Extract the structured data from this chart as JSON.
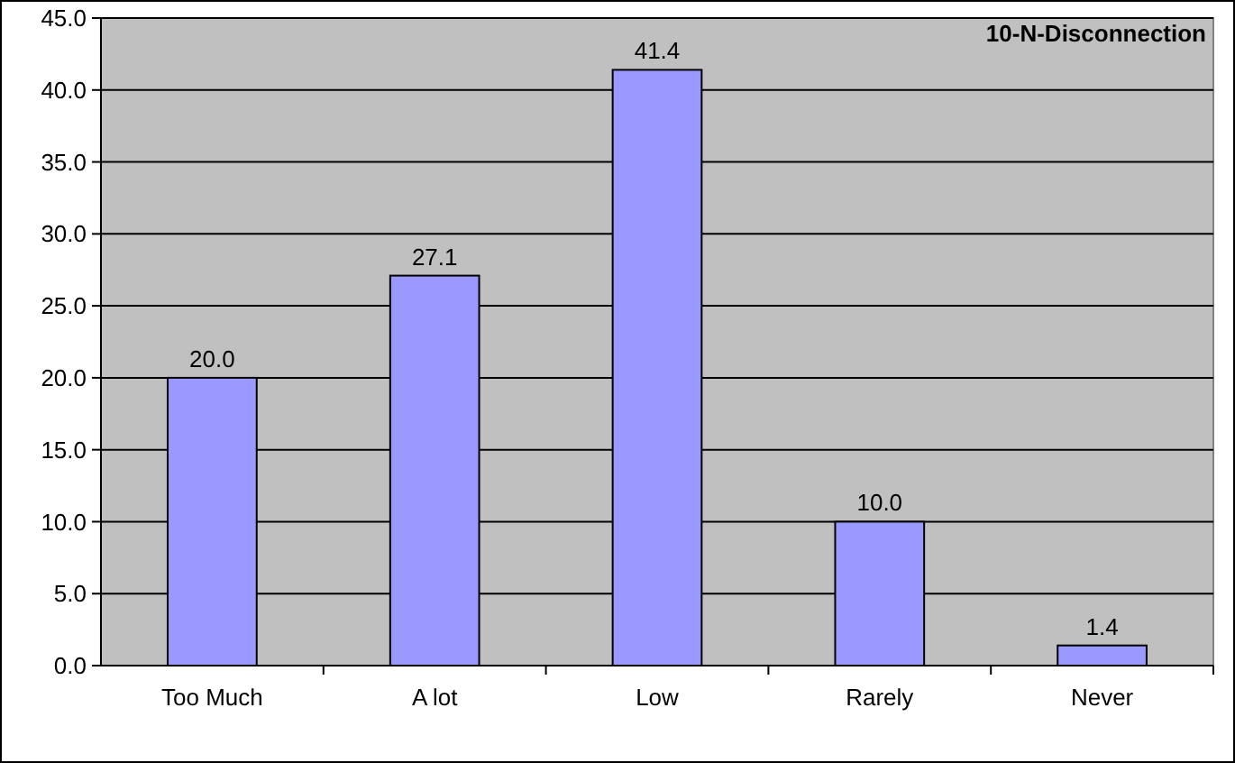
{
  "chart_data": {
    "type": "bar",
    "title": "10-N-Disconnection",
    "categories": [
      "Too Much",
      "A lot",
      "Low",
      "Rarely",
      "Never"
    ],
    "values": [
      20.0,
      27.1,
      41.4,
      10.0,
      1.4
    ],
    "color": "#9999ff",
    "value_labels": [
      "20.0",
      "27.1",
      "41.4",
      "10.0",
      "1.4"
    ],
    "ylim": [
      0,
      45
    ],
    "yticks": [
      {
        "value": 0,
        "label": "0.0"
      },
      {
        "value": 5,
        "label": "5.0"
      },
      {
        "value": 10,
        "label": "10.0"
      },
      {
        "value": 15,
        "label": "15.0"
      },
      {
        "value": 20,
        "label": "20.0"
      },
      {
        "value": 25,
        "label": "25.0"
      },
      {
        "value": 30,
        "label": "30.0"
      },
      {
        "value": 35,
        "label": "35.0"
      },
      {
        "value": 40,
        "label": "40.0"
      },
      {
        "value": 45,
        "label": "45.0"
      }
    ],
    "grid": "y"
  }
}
